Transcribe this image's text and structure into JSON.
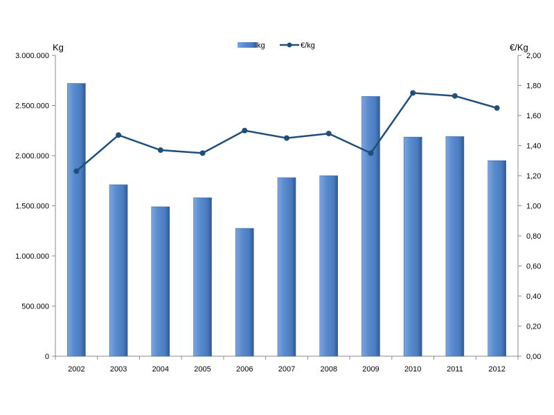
{
  "chart_data": {
    "type": "bar",
    "categories": [
      "2002",
      "2003",
      "2004",
      "2005",
      "2006",
      "2007",
      "2008",
      "2009",
      "2010",
      "2011",
      "2012"
    ],
    "series": [
      {
        "name": "kg",
        "type": "bar",
        "axis": "left",
        "color": "#4f81bd",
        "values": [
          2720000,
          1710000,
          1490000,
          1580000,
          1275000,
          1780000,
          1800000,
          2590000,
          2185000,
          2190000,
          1950000
        ]
      },
      {
        "name": "€/kg",
        "type": "line",
        "axis": "right",
        "color": "#1f4e79",
        "values": [
          1.23,
          1.47,
          1.37,
          1.35,
          1.5,
          1.45,
          1.48,
          1.35,
          1.75,
          1.73,
          1.65
        ]
      }
    ],
    "ylabel_left": "Kg",
    "ylabel_right": "€/Kg",
    "ylim_left": [
      0,
      3000000
    ],
    "ylim_right": [
      0,
      2.0
    ],
    "yticks_left": [
      "0",
      "500.000",
      "1.000.000",
      "1.500.000",
      "2.000.000",
      "2.500.000",
      "3.000.000"
    ],
    "yticks_right": [
      "0,00",
      "0,20",
      "0,40",
      "0,60",
      "0,80",
      "1,00",
      "1,20",
      "1,40",
      "1,60",
      "1,80",
      "2,00"
    ],
    "grid": false,
    "legend_position": "top-center"
  }
}
